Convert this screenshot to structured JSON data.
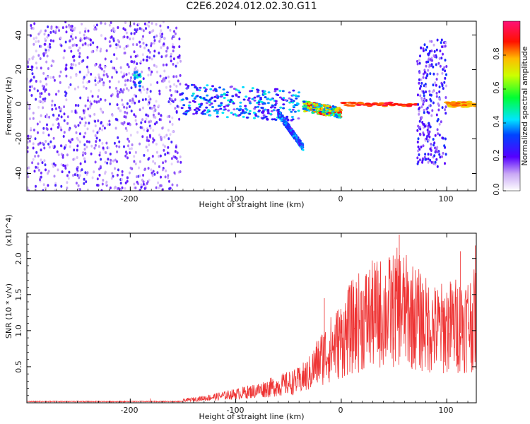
{
  "figure": {
    "title": "C2E6.2024.012.02.30.G11"
  },
  "chart_data": [
    {
      "type": "heatmap",
      "title": "C2E6.2024.012.02.30.G11",
      "xlabel": "Height of straight line (km)",
      "ylabel": "Frequency (Hz)",
      "xlim": [
        -298,
        128
      ],
      "ylim": [
        -50,
        48
      ],
      "x_ticks": [
        -200,
        -100,
        0,
        100
      ],
      "x_tick_labels": [
        "-200",
        "-100",
        "0",
        "100"
      ],
      "y_ticks": [
        -40,
        -20,
        0,
        20,
        40
      ],
      "y_tick_labels": [
        "-40",
        "-20",
        "0",
        "20",
        "40"
      ],
      "colorbar": {
        "label": "Normalized spectral amplitude",
        "range": [
          0,
          1
        ],
        "ticks": [
          0,
          0.2,
          0.4,
          0.6,
          0.8
        ],
        "tick_labels": [
          "0.0",
          "0.2",
          "0.4",
          "0.6",
          "0.8"
        ],
        "colormap": "rainbow (white, violet, blue, cyan, green, yellow, red, magenta)"
      },
      "features": [
        {
          "x_range": [
            -298,
            -152
          ],
          "freq_range": [
            -50,
            48
          ],
          "amplitude": 0.15,
          "kind": "broadband noise"
        },
        {
          "x_range": [
            -196,
            -190
          ],
          "freq_range": [
            10,
            20
          ],
          "amplitude": 0.45,
          "kind": "blob"
        },
        {
          "x_range": [
            -152,
            -40
          ],
          "freq_range": [
            -6,
            12
          ],
          "amplitude": 0.35,
          "kind": "band"
        },
        {
          "x_range": [
            -60,
            -36
          ],
          "freq_range": [
            -25,
            -5
          ],
          "amplitude": 0.35,
          "kind": "branch"
        },
        {
          "x_range": [
            -36,
            0
          ],
          "freq_range": [
            -4,
            2
          ],
          "amplitude": 0.7,
          "kind": "band"
        },
        {
          "x_range": [
            0,
            72
          ],
          "freq_range": [
            -1,
            1
          ],
          "amplitude": 0.95,
          "kind": "line"
        },
        {
          "x_range": [
            72,
            100
          ],
          "freq_range": [
            -36,
            38
          ],
          "amplitude": 0.2,
          "kind": "burst"
        },
        {
          "x_range": [
            100,
            128
          ],
          "freq_range": [
            -1.5,
            1.5
          ],
          "amplitude": 0.85,
          "kind": "line"
        }
      ]
    },
    {
      "type": "line",
      "xlabel": "Height of straight line (km)",
      "ylabel": "SNR (10 * v/v)",
      "y_multiplier_label": "(x10^4)",
      "xlim": [
        -298,
        128
      ],
      "ylim": [
        0,
        2.35
      ],
      "x_ticks": [
        -200,
        -100,
        0,
        100
      ],
      "x_tick_labels": [
        "-200",
        "-100",
        "0",
        "100"
      ],
      "y_ticks": [
        0.5,
        1.0,
        1.5,
        2.0
      ],
      "y_tick_labels": [
        "0.5",
        "1.0",
        "1.5",
        "2.0"
      ],
      "color": "#ee3333",
      "envelope": {
        "x": [
          -298,
          -220,
          -180,
          -160,
          -140,
          -120,
          -100,
          -80,
          -60,
          -40,
          -30,
          -20,
          -10,
          0,
          10,
          20,
          30,
          40,
          50,
          55,
          60,
          70,
          80,
          90,
          100,
          110,
          120,
          128
        ],
        "y": [
          0.01,
          0.01,
          0.03,
          0.03,
          0.07,
          0.12,
          0.18,
          0.25,
          0.35,
          0.45,
          0.6,
          0.9,
          1.1,
          1.3,
          1.55,
          1.7,
          1.8,
          1.85,
          1.9,
          2.0,
          1.9,
          1.75,
          1.6,
          1.5,
          1.55,
          1.6,
          1.65,
          1.7
        ]
      },
      "spikes": [
        {
          "x": -181,
          "y": 0.06
        },
        {
          "x": -16,
          "y": 1.45
        },
        {
          "x": 8,
          "y": 1.6
        },
        {
          "x": 55,
          "y": 2.33
        },
        {
          "x": 113,
          "y": 2.1
        },
        {
          "x": 127,
          "y": 2.18
        }
      ]
    }
  ]
}
